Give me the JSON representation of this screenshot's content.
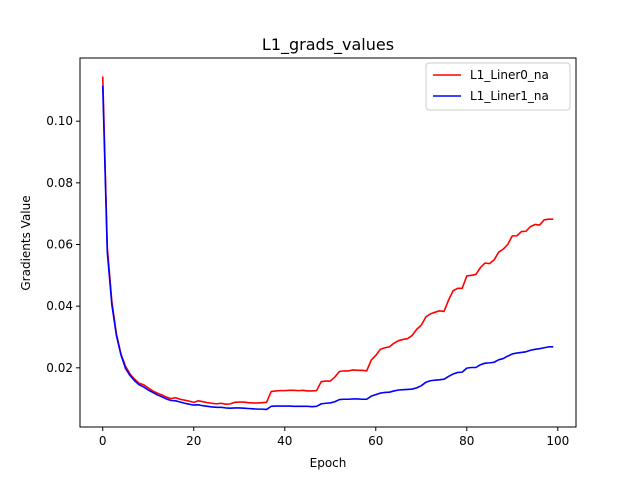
{
  "chart_data": {
    "type": "line",
    "title": "L1_grads_values",
    "xlabel": "Epoch",
    "ylabel": "Gradients Value",
    "xlim": [
      -5,
      104
    ],
    "ylim": [
      0.0008,
      0.1205
    ],
    "xticks": [
      0,
      20,
      40,
      60,
      80,
      100
    ],
    "yticks": [
      0.02,
      0.04,
      0.06,
      0.08,
      0.1
    ],
    "ytick_labels": [
      "0.02",
      "0.04",
      "0.06",
      "0.08",
      "0.10"
    ],
    "grid": false,
    "legend_position": "top-right",
    "series": [
      {
        "name": "L1_Liner0_na",
        "color": "#ff0000",
        "x": [
          0,
          1,
          2,
          3,
          4,
          5,
          6,
          7,
          8,
          9,
          10,
          11,
          12,
          13,
          14,
          15,
          16,
          17,
          18,
          19,
          20,
          21,
          22,
          23,
          24,
          25,
          26,
          27,
          28,
          29,
          30,
          31,
          32,
          33,
          34,
          35,
          36,
          37,
          38,
          39,
          40,
          41,
          42,
          43,
          44,
          45,
          46,
          47,
          48,
          49,
          50,
          51,
          52,
          53,
          54,
          55,
          56,
          57,
          58,
          59,
          60,
          61,
          62,
          63,
          64,
          65,
          66,
          67,
          68,
          69,
          70,
          71,
          72,
          73,
          74,
          75,
          76,
          77,
          78,
          79,
          80,
          81,
          82,
          83,
          84,
          85,
          86,
          87,
          88,
          89,
          90,
          91,
          92,
          93,
          94,
          95,
          96,
          97,
          98,
          99
        ],
        "y": [
          0.1145,
          0.059,
          0.0415,
          0.031,
          0.0245,
          0.0205,
          0.018,
          0.0163,
          0.015,
          0.0145,
          0.0135,
          0.0125,
          0.0118,
          0.0112,
          0.0105,
          0.01,
          0.0103,
          0.0098,
          0.0095,
          0.0092,
          0.0088,
          0.0093,
          0.009,
          0.0087,
          0.0085,
          0.0083,
          0.0085,
          0.0082,
          0.0083,
          0.0088,
          0.0089,
          0.0089,
          0.0087,
          0.0086,
          0.0086,
          0.0087,
          0.0088,
          0.0123,
          0.0125,
          0.0126,
          0.0126,
          0.0127,
          0.0127,
          0.0126,
          0.0127,
          0.0125,
          0.0125,
          0.0126,
          0.0155,
          0.0157,
          0.0157,
          0.017,
          0.0188,
          0.019,
          0.019,
          0.0193,
          0.0192,
          0.0192,
          0.019,
          0.0225,
          0.024,
          0.026,
          0.0265,
          0.0268,
          0.028,
          0.0288,
          0.0292,
          0.0295,
          0.0305,
          0.0325,
          0.0338,
          0.0365,
          0.0375,
          0.038,
          0.0385,
          0.0383,
          0.042,
          0.045,
          0.0458,
          0.0458,
          0.0498,
          0.05,
          0.0503,
          0.0525,
          0.054,
          0.0538,
          0.055,
          0.0575,
          0.0585,
          0.06,
          0.0628,
          0.0628,
          0.0642,
          0.0643,
          0.0658,
          0.0665,
          0.0663,
          0.068,
          0.0682,
          0.0682
        ]
      },
      {
        "name": "L1_Liner1_na",
        "color": "#0000ff",
        "x": [
          0,
          1,
          2,
          3,
          4,
          5,
          6,
          7,
          8,
          9,
          10,
          11,
          12,
          13,
          14,
          15,
          16,
          17,
          18,
          19,
          20,
          21,
          22,
          23,
          24,
          25,
          26,
          27,
          28,
          29,
          30,
          31,
          32,
          33,
          34,
          35,
          36,
          37,
          38,
          39,
          40,
          41,
          42,
          43,
          44,
          45,
          46,
          47,
          48,
          49,
          50,
          51,
          52,
          53,
          54,
          55,
          56,
          57,
          58,
          59,
          60,
          61,
          62,
          63,
          64,
          65,
          66,
          67,
          68,
          69,
          70,
          71,
          72,
          73,
          74,
          75,
          76,
          77,
          78,
          79,
          80,
          81,
          82,
          83,
          84,
          85,
          86,
          87,
          88,
          89,
          90,
          91,
          92,
          93,
          94,
          95,
          96,
          97,
          98,
          99
        ],
        "y": [
          0.1115,
          0.0575,
          0.0405,
          0.0305,
          0.0242,
          0.0198,
          0.0175,
          0.0158,
          0.0145,
          0.0138,
          0.0128,
          0.012,
          0.0112,
          0.0106,
          0.0099,
          0.0094,
          0.0093,
          0.0089,
          0.0085,
          0.0082,
          0.0079,
          0.008,
          0.0077,
          0.0075,
          0.0073,
          0.0072,
          0.0072,
          0.007,
          0.0069,
          0.007,
          0.007,
          0.0069,
          0.0068,
          0.0067,
          0.0066,
          0.0066,
          0.0065,
          0.0075,
          0.0076,
          0.0076,
          0.0076,
          0.0076,
          0.0075,
          0.0075,
          0.0075,
          0.0075,
          0.0074,
          0.0075,
          0.0083,
          0.0085,
          0.0086,
          0.009,
          0.0097,
          0.0098,
          0.0098,
          0.0099,
          0.0099,
          0.0098,
          0.0098,
          0.0108,
          0.0113,
          0.0118,
          0.012,
          0.0121,
          0.0125,
          0.0128,
          0.0129,
          0.013,
          0.0131,
          0.0135,
          0.0142,
          0.0153,
          0.0158,
          0.016,
          0.0161,
          0.0163,
          0.0172,
          0.018,
          0.0185,
          0.0186,
          0.0199,
          0.0201,
          0.0201,
          0.021,
          0.0215,
          0.0216,
          0.0218,
          0.0226,
          0.023,
          0.0238,
          0.0245,
          0.0248,
          0.025,
          0.0252,
          0.0257,
          0.026,
          0.0262,
          0.0265,
          0.0268,
          0.0268
        ]
      }
    ]
  }
}
